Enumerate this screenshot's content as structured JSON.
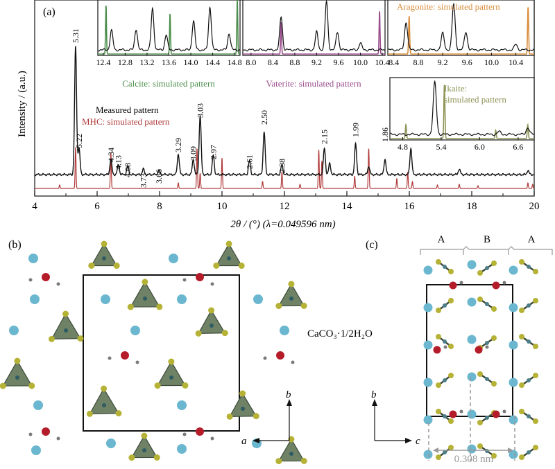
{
  "figure": {
    "panel_labels": [
      "(a)",
      "(b)",
      "(c)"
    ]
  },
  "chart_data": [
    {
      "type": "line",
      "panel": "(a)",
      "xlabel": "2θ / (°) (λ=0.049596 nm)",
      "ylabel": "Intensity / (a.u.)",
      "xlim": [
        4,
        20
      ],
      "xticks": [
        "4",
        "6",
        "8",
        "10",
        "12",
        "14",
        "16",
        "18",
        "20"
      ],
      "legend": [
        "Measured pattern",
        "MHC: simulated pattern"
      ],
      "series": [
        {
          "name": "Measured pattern",
          "color": "#111111"
        },
        {
          "name": "MHC: simulated pattern",
          "color": "#b03a3a"
        }
      ],
      "peak_labels": [
        {
          "x": 5.31,
          "label": "5.31"
        },
        {
          "x": 5.42,
          "label": "5.22"
        },
        {
          "x": 6.44,
          "label": "4.34"
        },
        {
          "x": 6.68,
          "label": "4.13"
        },
        {
          "x": 6.98,
          "label": "4.08"
        },
        {
          "x": 7.48,
          "label": "3.73"
        },
        {
          "x": 7.98,
          "label": "3.66"
        },
        {
          "x": 8.6,
          "label": "3.29"
        },
        {
          "x": 9.08,
          "label": "3.09"
        },
        {
          "x": 9.3,
          "label": "3.03"
        },
        {
          "x": 9.72,
          "label": "2.97"
        },
        {
          "x": 10.88,
          "label": "2.61"
        },
        {
          "x": 11.35,
          "label": "2.50"
        },
        {
          "x": 11.92,
          "label": "2.38"
        },
        {
          "x": 13.28,
          "label": "2.15"
        },
        {
          "x": 14.28,
          "label": "1.99"
        },
        {
          "x": 15.22,
          "label": "1.86"
        }
      ],
      "measured_peaks": [
        [
          5.31,
          185
        ],
        [
          5.42,
          38
        ],
        [
          6.44,
          22
        ],
        [
          6.68,
          14
        ],
        [
          6.98,
          12
        ],
        [
          7.48,
          8
        ],
        [
          7.98,
          6
        ],
        [
          8.6,
          30
        ],
        [
          9.08,
          22
        ],
        [
          9.3,
          86
        ],
        [
          9.72,
          28
        ],
        [
          10.88,
          20
        ],
        [
          11.35,
          62
        ],
        [
          11.92,
          14
        ],
        [
          13.28,
          38
        ],
        [
          13.45,
          16
        ],
        [
          14.28,
          44
        ],
        [
          14.7,
          12
        ],
        [
          15.22,
          22
        ],
        [
          16.05,
          38
        ],
        [
          17.6,
          8
        ],
        [
          19.8,
          6
        ]
      ],
      "simulated_peaks": [
        [
          4.8,
          5
        ],
        [
          5.31,
          60
        ],
        [
          6.44,
          52
        ],
        [
          8.6,
          8
        ],
        [
          9.2,
          58
        ],
        [
          9.3,
          22
        ],
        [
          10.0,
          44
        ],
        [
          11.3,
          10
        ],
        [
          11.92,
          24
        ],
        [
          12.5,
          6
        ],
        [
          13.1,
          56
        ],
        [
          13.2,
          40
        ],
        [
          14.25,
          18
        ],
        [
          14.7,
          58
        ],
        [
          15.6,
          14
        ],
        [
          15.95,
          24
        ],
        [
          16.1,
          10
        ],
        [
          16.9,
          5
        ],
        [
          17.6,
          6
        ],
        [
          18.2,
          4
        ],
        [
          19.8,
          8
        ],
        [
          19.95,
          6
        ]
      ]
    },
    {
      "type": "line",
      "panel": "inset",
      "legend": [
        "Calcite: simulated pattern"
      ],
      "xlim": [
        12.3,
        14.9
      ],
      "xticks": [
        "12.4",
        "12.8",
        "13.2",
        "13.6",
        "14.0",
        "14.4",
        "14.8"
      ],
      "series": [
        {
          "name": "Calcite: simulated pattern",
          "color": "#4b8e4b"
        }
      ],
      "measured_peaks": [
        [
          12.55,
          28
        ],
        [
          13.0,
          30
        ],
        [
          13.3,
          60
        ],
        [
          13.55,
          22
        ],
        [
          14.05,
          42
        ],
        [
          14.35,
          62
        ],
        [
          14.7,
          24
        ]
      ],
      "simulated_peaks": [
        [
          12.45,
          70
        ],
        [
          13.62,
          58
        ],
        [
          14.85,
          78
        ]
      ]
    },
    {
      "type": "line",
      "panel": "inset",
      "legend": [
        "Vaterite: simulated pattern"
      ],
      "xlim": [
        7.85,
        10.45
      ],
      "xticks": [
        "8.0",
        "8.4",
        "8.8",
        "9.2",
        "9.6",
        "10.0",
        "10.4"
      ],
      "series": [
        {
          "name": "Vaterite: simulated pattern",
          "color": "#9a4d8d"
        }
      ],
      "measured_peaks": [
        [
          8.55,
          48
        ],
        [
          9.2,
          26
        ],
        [
          9.38,
          70
        ],
        [
          9.58,
          26
        ],
        [
          10.0,
          10
        ]
      ],
      "simulated_peaks": [
        [
          8.55,
          46
        ],
        [
          10.35,
          62
        ]
      ]
    },
    {
      "type": "line",
      "panel": "inset",
      "legend": [
        "Aragonite: simulated pattern"
      ],
      "xlim": [
        8.3,
        10.7
      ],
      "xticks": [
        "8.4",
        "8.8",
        "9.2",
        "9.6",
        "10.0",
        "10.4"
      ],
      "series": [
        {
          "name": "Aragonite: simulated pattern",
          "color": "#d98c3a"
        }
      ],
      "measured_peaks": [
        [
          8.6,
          40
        ],
        [
          9.2,
          24
        ],
        [
          9.38,
          66
        ],
        [
          9.58,
          26
        ],
        [
          10.4,
          8
        ]
      ],
      "simulated_peaks": [
        [
          8.65,
          55
        ],
        [
          10.6,
          68
        ]
      ]
    },
    {
      "type": "line",
      "panel": "inset",
      "legend": [
        "Ikaite:",
        "simulated pattern"
      ],
      "xlim": [
        4.6,
        6.85
      ],
      "xticks": [
        "4.8",
        "5.4",
        "6.0",
        "6.6"
      ],
      "series": [
        {
          "name": "Ikaite: simulated pattern",
          "color": "#8e9455"
        }
      ],
      "measured_peaks": [
        [
          5.3,
          75
        ],
        [
          6.3,
          4
        ],
        [
          6.75,
          10
        ]
      ],
      "simulated_peaks": [
        [
          4.85,
          20
        ],
        [
          5.45,
          78
        ],
        [
          6.25,
          12
        ],
        [
          6.75,
          20
        ]
      ]
    }
  ],
  "panel_b": {
    "formula": "CaCO₃·1/2H₂O",
    "axis_a": "a",
    "axis_b": "b"
  },
  "panel_c": {
    "layer_labels": [
      "A",
      "B",
      "A"
    ],
    "axis_b": "b",
    "axis_c": "c",
    "spacing_label": "0.308 nm"
  },
  "colors": {
    "measured": "#111111",
    "mhc": "#b03a3a",
    "calcium": "#6ab7cf",
    "oxygen_water": "#b51c2a",
    "carbonate_triangle": "#6f8266",
    "carbonate_vertex": "#b5b236",
    "hydrogen": "#7a7a7a"
  }
}
